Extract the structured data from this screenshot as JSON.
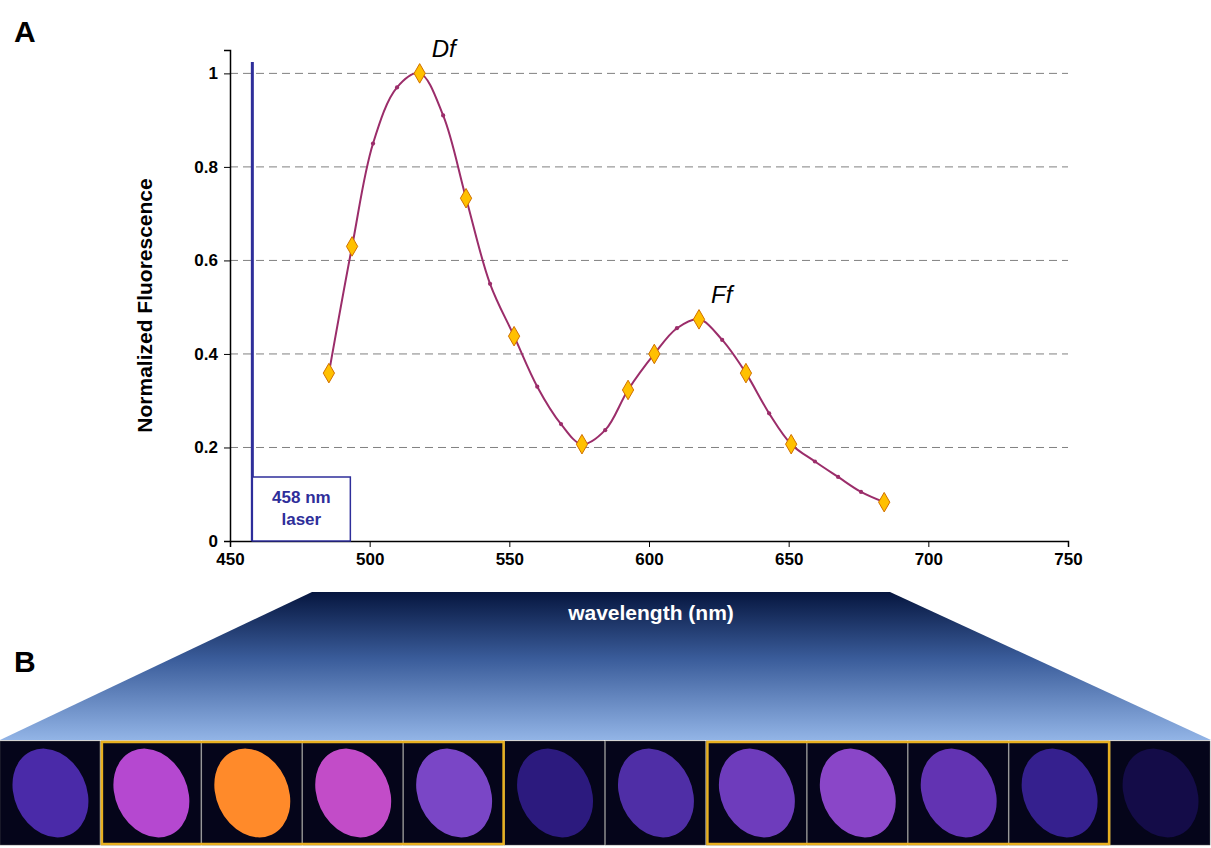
{
  "chart_data": {
    "type": "line",
    "panel_labels": [
      "A",
      "B"
    ],
    "x_label": "wavelength (nm)",
    "y_label": "Normalized Fluorescence",
    "xlim": [
      450,
      750
    ],
    "xticks": [
      450,
      500,
      550,
      600,
      650,
      700,
      750
    ],
    "ylim": [
      0,
      1.05
    ],
    "yticks": [
      0,
      0.2,
      0.4,
      0.6,
      0.8,
      1
    ],
    "grid": true,
    "series": [
      {
        "type": "line",
        "color": "#9b2d6a",
        "marker": "circle",
        "line_style": "solid",
        "x": [
          485.4,
          493.7,
          501.2,
          509.8,
          517.9,
          526.3,
          534.5,
          543.1,
          551.7,
          560.0,
          568.5,
          576.0,
          584.3,
          592.5,
          601.9,
          610.0,
          617.9,
          626.2,
          634.7,
          643.0,
          650.9,
          659.4,
          667.7,
          675.9,
          684.2
        ],
        "values": [
          0.359,
          0.63,
          0.85,
          0.97,
          1.0,
          0.91,
          0.733,
          0.55,
          0.438,
          0.33,
          0.25,
          0.207,
          0.237,
          0.323,
          0.4,
          0.455,
          0.474,
          0.43,
          0.359,
          0.273,
          0.207,
          0.17,
          0.137,
          0.105,
          0.083
        ]
      },
      {
        "type": "scatter",
        "color": "#ffc000",
        "marker": "diamond",
        "x": [
          485.4,
          493.7,
          517.9,
          534.5,
          551.7,
          576.0,
          592.5,
          601.9,
          617.9,
          634.7,
          650.9,
          684.2
        ],
        "values": [
          0.359,
          0.63,
          1.0,
          0.733,
          0.438,
          0.207,
          0.323,
          0.4,
          0.474,
          0.359,
          0.207,
          0.083
        ]
      }
    ],
    "annotations": [
      {
        "text": "Df",
        "x": 517.9,
        "y": 1.0
      },
      {
        "text": "Ff",
        "x": 617.9,
        "y": 0.474
      },
      {
        "text": "458 nm laser",
        "x": 458,
        "color": "#2e2e9a"
      }
    ]
  }
}
